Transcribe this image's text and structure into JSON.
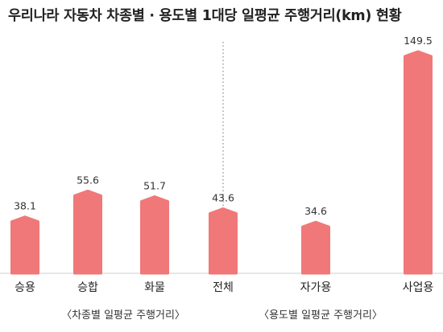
{
  "chart_data": {
    "type": "bar",
    "title": "우리나라 자동차 차종별 · 용도별 1대당 일평균 주행거리(km) 현황",
    "unit": "km",
    "categories": [
      "승용",
      "승합",
      "화물",
      "전체",
      "자가용",
      "사업용"
    ],
    "values": [
      38.1,
      55.6,
      51.7,
      43.6,
      34.6,
      149.5
    ],
    "value_labels": [
      "38.1",
      "55.6",
      "51.7",
      "43.6",
      "34.6",
      "149.5"
    ],
    "groups": [
      {
        "label": "〈차종별 일평균 주행거리〉"
      },
      {
        "label": "〈용도별 일평균 주행거리〉"
      }
    ],
    "bar_color": "#f07879",
    "divider_style": "dotted",
    "ylim": [
      0,
      149.5
    ]
  }
}
